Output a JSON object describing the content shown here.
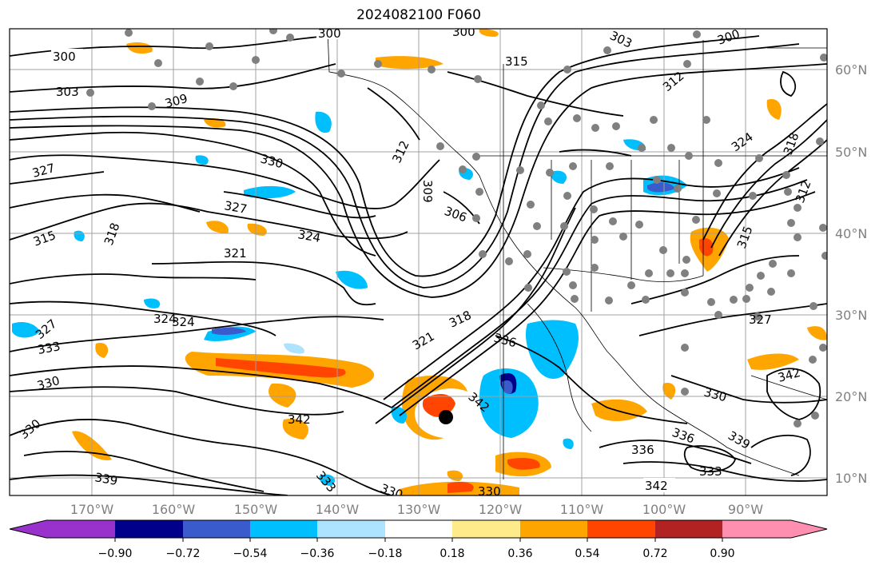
{
  "title": "2024082100 F060",
  "latitude_labels": [
    "60°N",
    "50°N",
    "40°N",
    "30°N",
    "20°N",
    "10°N"
  ],
  "longitude_labels": [
    "170°W",
    "160°W",
    "150°W",
    "140°W",
    "130°W",
    "120°W",
    "110°W",
    "100°W",
    "90°W"
  ],
  "colorbar": {
    "tick_labels": [
      "−0.90",
      "−0.72",
      "−0.54",
      "−0.36",
      "−0.18",
      "0.18",
      "0.36",
      "0.54",
      "0.72",
      "0.90"
    ],
    "colors": [
      "#9932cc",
      "#00008b",
      "#3a5bcc",
      "#00bfff",
      "#aee3ff",
      "#ffffff",
      "#ffeb8a",
      "#ffa500",
      "#ff4500",
      "#b22222",
      "#ff8fb0"
    ]
  },
  "contour_labels": [
    "300",
    "300",
    "303",
    "300",
    "303",
    "300",
    "309",
    "312",
    "315",
    "312",
    "327",
    "330",
    "309",
    "306",
    "327",
    "324",
    "318",
    "321",
    "315",
    "324",
    "324",
    "327",
    "333",
    "330",
    "321",
    "318",
    "336",
    "342",
    "342",
    "330",
    "336",
    "339",
    "336",
    "342",
    "330",
    "333",
    "330",
    "339",
    "333",
    "324",
    "318",
    "312",
    "315",
    "327",
    "342",
    "330"
  ],
  "features": {
    "storm_marker": "black-circle",
    "station_markers": "gray-dots"
  }
}
